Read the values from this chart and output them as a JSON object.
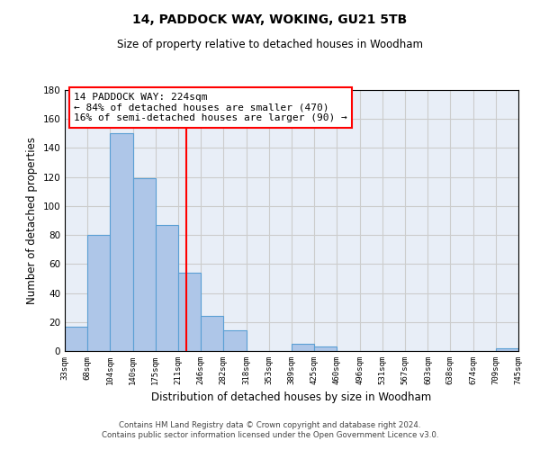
{
  "title": "14, PADDOCK WAY, WOKING, GU21 5TB",
  "subtitle": "Size of property relative to detached houses in Woodham",
  "xlabel": "Distribution of detached houses by size in Woodham",
  "ylabel": "Number of detached properties",
  "bar_edges": [
    33,
    68,
    104,
    140,
    175,
    211,
    246,
    282,
    318,
    353,
    389,
    425,
    460,
    496,
    531,
    567,
    603,
    638,
    674,
    709,
    745
  ],
  "bar_heights": [
    17,
    80,
    150,
    119,
    87,
    54,
    24,
    14,
    0,
    0,
    5,
    3,
    0,
    0,
    0,
    0,
    0,
    0,
    0,
    2
  ],
  "bar_color": "#aec6e8",
  "bar_edgecolor": "#5a9fd4",
  "property_line_x": 224,
  "property_line_color": "red",
  "annotation_line1": "14 PADDOCK WAY: 224sqm",
  "annotation_line2": "← 84% of detached houses are smaller (470)",
  "annotation_line3": "16% of semi-detached houses are larger (90) →",
  "ylim": [
    0,
    180
  ],
  "yticks": [
    0,
    20,
    40,
    60,
    80,
    100,
    120,
    140,
    160,
    180
  ],
  "grid_color": "#cccccc",
  "background_color": "#e8eef7",
  "footer_line1": "Contains HM Land Registry data © Crown copyright and database right 2024.",
  "footer_line2": "Contains public sector information licensed under the Open Government Licence v3.0.",
  "tick_labels": [
    "33sqm",
    "68sqm",
    "104sqm",
    "140sqm",
    "175sqm",
    "211sqm",
    "246sqm",
    "282sqm",
    "318sqm",
    "353sqm",
    "389sqm",
    "425sqm",
    "460sqm",
    "496sqm",
    "531sqm",
    "567sqm",
    "603sqm",
    "638sqm",
    "674sqm",
    "709sqm",
    "745sqm"
  ]
}
